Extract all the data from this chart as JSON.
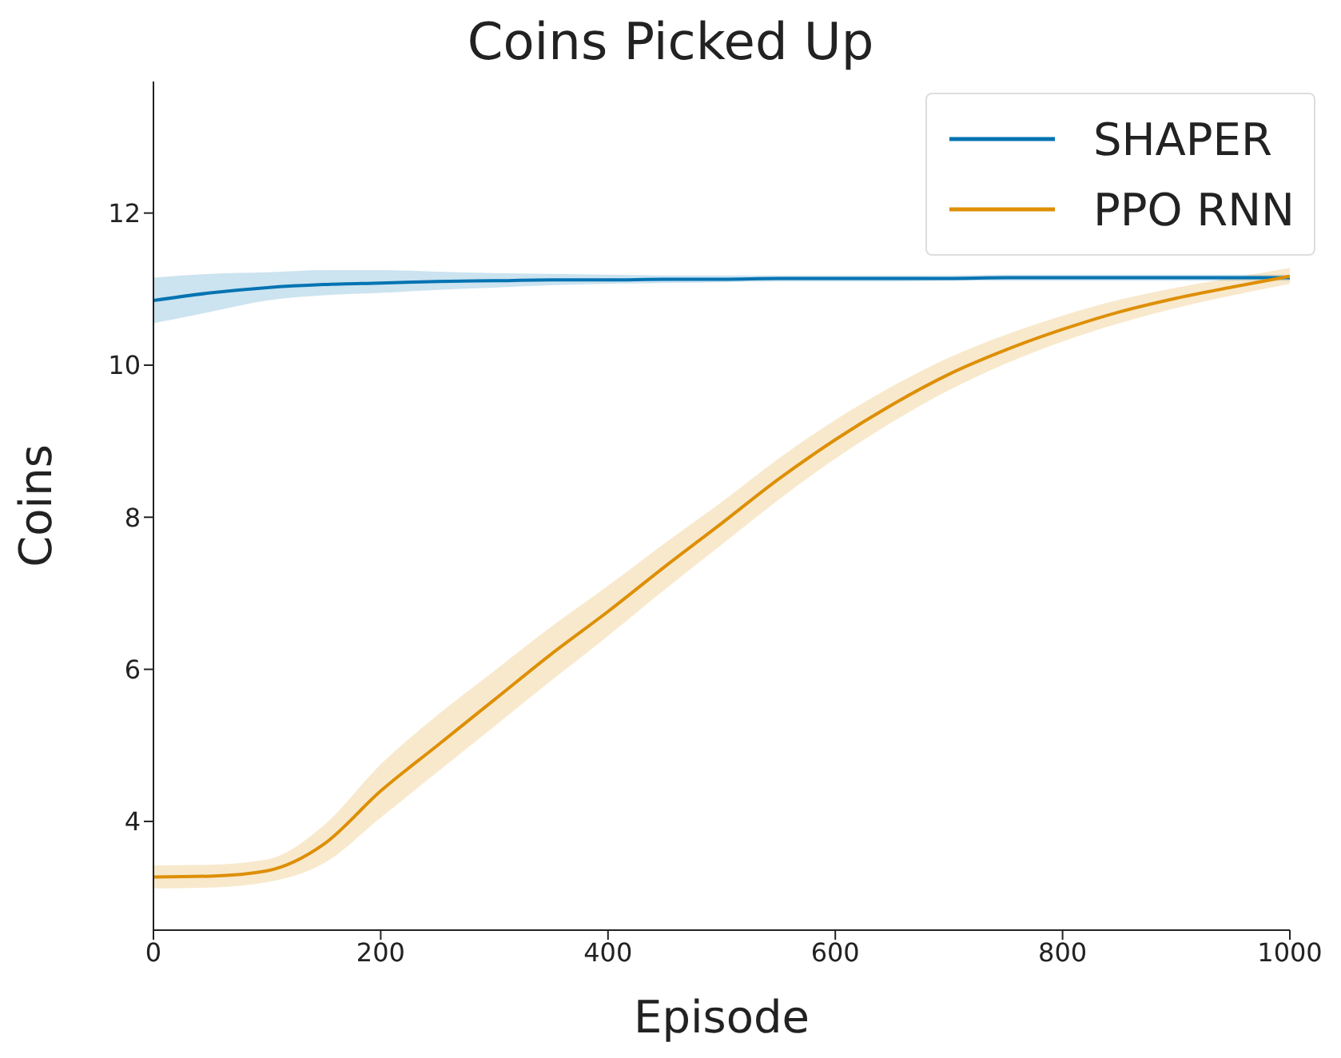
{
  "chart_data": {
    "type": "line",
    "title": "Coins Picked Up",
    "xlabel": "Episode",
    "ylabel": "Coins",
    "x": [
      0,
      50,
      100,
      150,
      200,
      250,
      300,
      350,
      400,
      450,
      500,
      550,
      600,
      650,
      700,
      750,
      800,
      850,
      900,
      950,
      1000
    ],
    "series": [
      {
        "name": "SHAPER",
        "color": "#0173b2",
        "values": [
          10.85,
          10.95,
          11.02,
          11.06,
          11.08,
          11.1,
          11.11,
          11.12,
          11.12,
          11.13,
          11.13,
          11.14,
          11.14,
          11.14,
          11.14,
          11.15,
          11.15,
          11.15,
          11.15,
          11.15,
          11.15
        ],
        "lower": [
          10.55,
          10.7,
          10.85,
          10.92,
          10.95,
          10.99,
          11.02,
          11.05,
          11.07,
          11.08,
          11.09,
          11.1,
          11.1,
          11.1,
          11.11,
          11.11,
          11.11,
          11.11,
          11.11,
          11.11,
          11.11
        ],
        "upper": [
          11.15,
          11.2,
          11.22,
          11.25,
          11.25,
          11.23,
          11.21,
          11.2,
          11.19,
          11.18,
          11.18,
          11.18,
          11.18,
          11.18,
          11.18,
          11.19,
          11.19,
          11.19,
          11.19,
          11.19,
          11.19
        ]
      },
      {
        "name": "PPO RNN",
        "color": "#de8f05",
        "values": [
          3.27,
          3.28,
          3.35,
          3.7,
          4.4,
          5.0,
          5.6,
          6.2,
          6.76,
          7.35,
          7.92,
          8.5,
          9.02,
          9.48,
          9.88,
          10.2,
          10.47,
          10.7,
          10.88,
          11.03,
          11.17
        ],
        "lower": [
          3.12,
          3.13,
          3.2,
          3.45,
          4.05,
          4.65,
          5.25,
          5.85,
          6.44,
          7.05,
          7.64,
          8.23,
          8.77,
          9.25,
          9.67,
          10.02,
          10.31,
          10.55,
          10.75,
          10.92,
          11.07
        ],
        "upper": [
          3.42,
          3.43,
          3.5,
          3.95,
          4.75,
          5.4,
          5.98,
          6.56,
          7.1,
          7.66,
          8.2,
          8.77,
          9.28,
          9.72,
          10.1,
          10.4,
          10.65,
          10.86,
          11.02,
          11.15,
          11.28
        ]
      }
    ],
    "xlim": [
      0,
      1000
    ],
    "xticks": [
      0,
      200,
      400,
      600,
      800,
      1000
    ],
    "ylim": [
      2.57,
      13.73
    ],
    "yticks": [
      4,
      6,
      8,
      10,
      12
    ],
    "grid": false,
    "legend": "top right",
    "marker": "none",
    "line_style": "solid"
  }
}
